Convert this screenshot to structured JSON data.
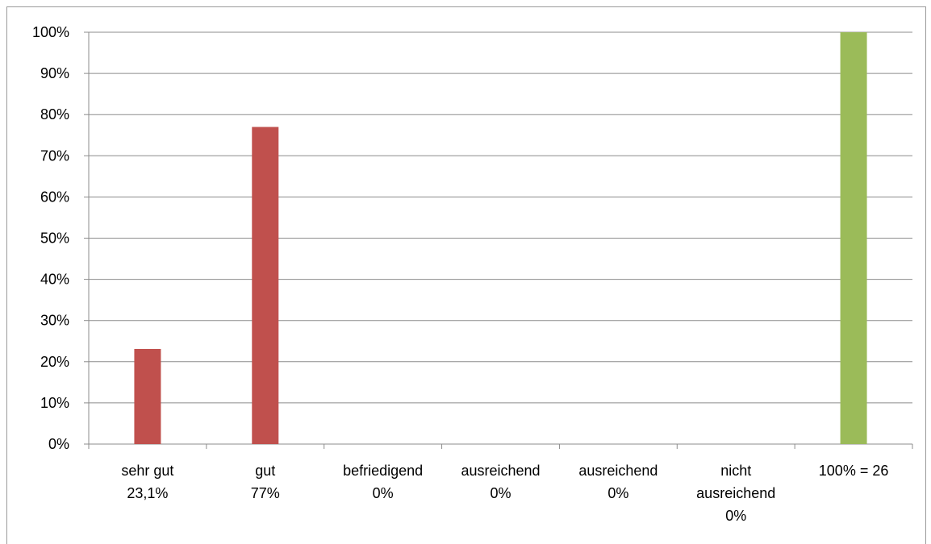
{
  "chart_data": {
    "type": "bar",
    "categories": [
      [
        "sehr gut",
        "23,1%"
      ],
      [
        "gut",
        "77%"
      ],
      [
        "befriedigend",
        "0%"
      ],
      [
        "ausreichend",
        "0%"
      ],
      [
        "ausreichend",
        "0%"
      ],
      [
        "nicht",
        "ausreichend",
        "0%"
      ],
      [
        "100% = 26"
      ]
    ],
    "values": [
      23.1,
      77,
      0,
      0,
      0,
      0,
      100
    ],
    "bar_colors": [
      "#c0504d",
      "#c0504d",
      "#c0504d",
      "#c0504d",
      "#c0504d",
      "#c0504d",
      "#9bbb59"
    ],
    "y_ticks": [
      "0%",
      "10%",
      "20%",
      "30%",
      "40%",
      "50%",
      "60%",
      "70%",
      "80%",
      "90%",
      "100%"
    ],
    "ylim": [
      0,
      100
    ],
    "grid": true,
    "title": "",
    "xlabel": "",
    "ylabel": ""
  }
}
